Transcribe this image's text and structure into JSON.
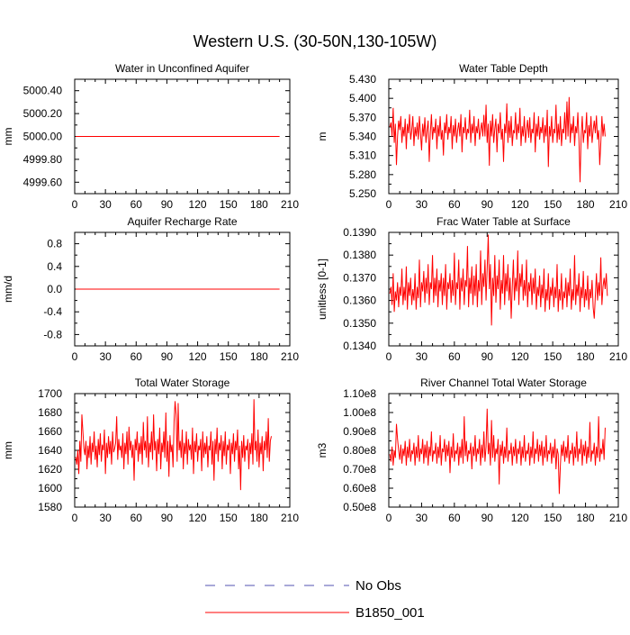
{
  "figure": {
    "title": "Western U.S. (30-50N,130-105W)"
  },
  "legend": {
    "entries": [
      {
        "label": "No Obs",
        "color": "#5050b0",
        "dash": true
      },
      {
        "label": "B1850_001",
        "color": "#ff0000",
        "dash": false
      }
    ]
  },
  "colors": {
    "series": "#ff0000",
    "axes": "#000000"
  },
  "chart_data": [
    {
      "type": "line",
      "title": "Water in Unconfined Aquifer",
      "ylabel": "mm",
      "xlim": [
        0,
        210
      ],
      "xticks": [
        0,
        30,
        60,
        90,
        120,
        150,
        180,
        210
      ],
      "ylim": [
        4999.5,
        5000.5
      ],
      "yticks": [
        "4999.60",
        "4999.80",
        "5000.00",
        "5000.20",
        "5000.40"
      ],
      "series": [
        {
          "constant": 5000.0,
          "n": 200
        }
      ]
    },
    {
      "type": "line",
      "title": "Water Table Depth",
      "ylabel": "m",
      "xlim": [
        0,
        210
      ],
      "xticks": [
        0,
        30,
        60,
        90,
        120,
        150,
        180,
        210
      ],
      "ylim": [
        5.25,
        5.43
      ],
      "yticks": [
        "5.250",
        "5.280",
        "5.310",
        "5.340",
        "5.370",
        "5.400",
        "5.430"
      ],
      "series": [
        {
          "values": [
            5.355,
            5.362,
            5.34,
            5.385,
            5.33,
            5.36,
            5.295,
            5.34,
            5.365,
            5.35,
            5.372,
            5.33,
            5.355,
            5.34,
            5.368,
            5.32,
            5.36,
            5.345,
            5.375,
            5.335,
            5.35,
            5.372,
            5.325,
            5.355,
            5.34,
            5.362,
            5.335,
            5.372,
            5.345,
            5.318,
            5.36,
            5.34,
            5.37,
            5.33,
            5.35,
            5.365,
            5.3,
            5.345,
            5.375,
            5.335,
            5.355,
            5.345,
            5.368,
            5.32,
            5.358,
            5.34,
            5.372,
            5.335,
            5.35,
            5.31,
            5.362,
            5.345,
            5.375,
            5.335,
            5.355,
            5.345,
            5.372,
            5.32,
            5.358,
            5.34,
            5.368,
            5.33,
            5.35,
            5.362,
            5.34,
            5.375,
            5.315,
            5.355,
            5.345,
            5.37,
            5.335,
            5.352,
            5.345,
            5.382,
            5.33,
            5.36,
            5.345,
            5.372,
            5.325,
            5.356,
            5.345,
            5.368,
            5.335,
            5.35,
            5.362,
            5.34,
            5.374,
            5.34,
            5.39,
            5.33,
            5.36,
            5.294,
            5.365,
            5.34,
            5.375,
            5.33,
            5.352,
            5.368,
            5.315,
            5.36,
            5.345,
            5.378,
            5.335,
            5.352,
            5.3,
            5.36,
            5.345,
            5.392,
            5.33,
            5.365,
            5.338,
            5.372,
            5.325,
            5.35,
            5.345,
            5.378,
            5.335,
            5.36,
            5.345,
            5.385,
            5.325,
            5.356,
            5.34,
            5.372,
            5.33,
            5.35,
            5.366,
            5.338,
            5.37,
            5.33,
            5.352,
            5.345,
            5.378,
            5.315,
            5.36,
            5.34,
            5.372,
            5.335,
            5.355,
            5.345,
            5.37,
            5.33,
            5.358,
            5.34,
            5.382,
            5.292,
            5.356,
            5.34,
            5.372,
            5.33,
            5.352,
            5.345,
            5.39,
            5.33,
            5.36,
            5.335,
            5.372,
            5.325,
            5.352,
            5.345,
            5.378,
            5.335,
            5.395,
            5.34,
            5.402,
            5.33,
            5.36,
            5.345,
            5.372,
            5.325,
            5.356,
            5.345,
            5.378,
            5.335,
            5.268,
            5.34,
            5.372,
            5.33,
            5.35,
            5.345,
            5.378,
            5.32,
            5.358,
            5.34,
            5.372,
            5.33,
            5.35,
            5.365,
            5.345,
            5.373,
            5.335,
            5.35,
            5.295,
            5.33,
            5.372,
            5.34,
            5.36,
            5.34
          ]
        }
      ]
    },
    {
      "type": "line",
      "title": "Aquifer Recharge Rate",
      "ylabel": "mm/d",
      "xlim": [
        0,
        210
      ],
      "xticks": [
        0,
        30,
        60,
        90,
        120,
        150,
        180,
        210
      ],
      "ylim": [
        -1.0,
        1.0
      ],
      "yticks": [
        "-0.8",
        "-0.4",
        "0.0",
        "0.4",
        "0.8"
      ],
      "series": [
        {
          "constant": 0.0,
          "n": 200
        }
      ]
    },
    {
      "type": "line",
      "title": "Frac Water Table at Surface",
      "ylabel": "unitless [0-1]",
      "xlim": [
        0,
        210
      ],
      "xticks": [
        0,
        30,
        60,
        90,
        120,
        150,
        180,
        210
      ],
      "ylim": [
        0.134,
        0.139
      ],
      "yticks": [
        "0.1340",
        "0.1350",
        "0.1360",
        "0.1370",
        "0.1380",
        "0.1390"
      ],
      "series": [
        {
          "values": [
            0.1363,
            0.1366,
            0.1358,
            0.1372,
            0.1355,
            0.1364,
            0.136,
            0.1368,
            0.1357,
            0.1366,
            0.1362,
            0.1374,
            0.1358,
            0.1366,
            0.136,
            0.1375,
            0.1356,
            0.1368,
            0.1362,
            0.137,
            0.1358,
            0.1365,
            0.136,
            0.1372,
            0.1356,
            0.1366,
            0.1361,
            0.1378,
            0.1357,
            0.1368,
            0.1364,
            0.1373,
            0.1359,
            0.137,
            0.1363,
            0.1376,
            0.1358,
            0.1368,
            0.1365,
            0.138,
            0.1359,
            0.137,
            0.1362,
            0.1374,
            0.1357,
            0.1369,
            0.1364,
            0.1372,
            0.1358,
            0.137,
            0.1362,
            0.1376,
            0.1356,
            0.1368,
            0.1365,
            0.1372,
            0.1359,
            0.1369,
            0.1362,
            0.1381,
            0.1358,
            0.1368,
            0.1365,
            0.1378,
            0.1356,
            0.137,
            0.1364,
            0.1374,
            0.1358,
            0.1369,
            0.1366,
            0.1384,
            0.1357,
            0.137,
            0.1363,
            0.1375,
            0.1358,
            0.1371,
            0.1362,
            0.1376,
            0.1357,
            0.1369,
            0.1364,
            0.1382,
            0.1358,
            0.1372,
            0.1366,
            0.1378,
            0.136,
            0.1374,
            0.1389,
            0.1365,
            0.1376,
            0.1349,
            0.137,
            0.1362,
            0.138,
            0.1359,
            0.1371,
            0.1365,
            0.1378,
            0.1356,
            0.1369,
            0.1363,
            0.138,
            0.1358,
            0.1372,
            0.1364,
            0.1376,
            0.136,
            0.137,
            0.1352,
            0.1366,
            0.1378,
            0.136,
            0.137,
            0.1364,
            0.1382,
            0.1358,
            0.1372,
            0.1366,
            0.1376,
            0.136,
            0.1369,
            0.1362,
            0.1378,
            0.1357,
            0.1368,
            0.1364,
            0.1372,
            0.1358,
            0.137,
            0.1363,
            0.1374,
            0.1356,
            0.1366,
            0.1362,
            0.1371,
            0.1357,
            0.1367,
            0.1361,
            0.1374,
            0.1355,
            0.1365,
            0.136,
            0.1372,
            0.1356,
            0.1366,
            0.1362,
            0.137,
            0.1357,
            0.1366,
            0.1361,
            0.1376,
            0.1355,
            0.1365,
            0.136,
            0.1372,
            0.1356,
            0.1364,
            0.1361,
            0.137,
            0.1357,
            0.1368,
            0.1362,
            0.1374,
            0.1356,
            0.1365,
            0.136,
            0.138,
            0.1358,
            0.1367,
            0.1362,
            0.1372,
            0.1355,
            0.1366,
            0.1361,
            0.1373,
            0.1357,
            0.1365,
            0.136,
            0.1371,
            0.1356,
            0.1365,
            0.1361,
            0.1369,
            0.1357,
            0.1352,
            0.1362,
            0.1372,
            0.136,
            0.1368,
            0.1362,
            0.1379,
            0.1358,
            0.1366,
            0.137,
            0.1365,
            0.1372,
            0.1362
          ]
        }
      ]
    },
    {
      "type": "line",
      "title": "Total Water Storage",
      "ylabel": "mm",
      "xlim": [
        0,
        210
      ],
      "xticks": [
        0,
        30,
        60,
        90,
        120,
        150,
        180,
        210
      ],
      "ylim": [
        1580,
        1700
      ],
      "yticks": [
        "1580",
        "1600",
        "1620",
        "1640",
        "1660",
        "1680",
        "1700"
      ],
      "series": [
        {
          "values": [
            1633,
            1625,
            1640,
            1615,
            1650,
            1628,
            1678,
            1660,
            1642,
            1635,
            1650,
            1620,
            1645,
            1632,
            1655,
            1625,
            1648,
            1638,
            1660,
            1630,
            1645,
            1622,
            1652,
            1635,
            1658,
            1628,
            1646,
            1640,
            1662,
            1615,
            1648,
            1632,
            1655,
            1636,
            1650,
            1625,
            1660,
            1638,
            1642,
            1648,
            1676,
            1630,
            1652,
            1640,
            1645,
            1632,
            1658,
            1620,
            1648,
            1636,
            1660,
            1625,
            1665,
            1640,
            1650,
            1632,
            1646,
            1608,
            1652,
            1640,
            1660,
            1628,
            1648,
            1636,
            1655,
            1625,
            1670,
            1640,
            1650,
            1632,
            1676,
            1622,
            1648,
            1638,
            1660,
            1630,
            1678,
            1640,
            1650,
            1618,
            1652,
            1636,
            1664,
            1620,
            1648,
            1638,
            1660,
            1632,
            1680,
            1628,
            1650,
            1612,
            1656,
            1638,
            1646,
            1622,
            1670,
            1692,
            1678,
            1628,
            1690,
            1640,
            1650,
            1632,
            1662,
            1620,
            1648,
            1636,
            1660,
            1625,
            1652,
            1640,
            1646,
            1630,
            1664,
            1615,
            1650,
            1638,
            1658,
            1628,
            1645,
            1640,
            1652,
            1618,
            1660,
            1632,
            1648,
            1636,
            1655,
            1622,
            1645,
            1640,
            1660,
            1625,
            1650,
            1608,
            1652,
            1636,
            1664,
            1628,
            1648,
            1640,
            1656,
            1620,
            1650,
            1634,
            1660,
            1625,
            1646,
            1640,
            1652,
            1615,
            1648,
            1636,
            1658,
            1628,
            1650,
            1640,
            1662,
            1620,
            1645,
            1598,
            1650,
            1632,
            1656,
            1628,
            1645,
            1640,
            1652,
            1620,
            1648,
            1636,
            1658,
            1625,
            1694,
            1640,
            1650,
            1628,
            1662,
            1622,
            1648,
            1636,
            1655,
            1618,
            1650,
            1640,
            1660,
            1632,
            1674,
            1628,
            1650,
            1655
          ]
        }
      ]
    },
    {
      "type": "line",
      "title": "River Channel Total Water Storage",
      "ylabel": "m3",
      "xlim": [
        0,
        210
      ],
      "xticks": [
        0,
        30,
        60,
        90,
        120,
        150,
        180,
        210
      ],
      "ylim": [
        50000000.0,
        110000000.0
      ],
      "yticks": [
        "0.50e8",
        "0.60e8",
        "0.70e8",
        "0.80e8",
        "0.90e8",
        "1.00e8",
        "1.10e8"
      ],
      "series": [
        {
          "values": [
            0.78,
            0.74,
            0.82,
            0.72,
            0.8,
            0.76,
            0.94,
            0.86,
            0.8,
            0.75,
            0.83,
            0.73,
            0.81,
            0.77,
            0.85,
            0.72,
            0.82,
            0.76,
            0.86,
            0.74,
            0.8,
            0.78,
            0.84,
            0.72,
            0.82,
            0.76,
            0.88,
            0.74,
            0.81,
            0.78,
            0.86,
            0.73,
            0.83,
            0.76,
            0.85,
            0.72,
            0.82,
            0.77,
            0.9,
            0.74,
            0.8,
            0.78,
            0.84,
            0.73,
            0.82,
            0.76,
            0.88,
            0.72,
            0.81,
            0.79,
            0.86,
            0.74,
            0.83,
            0.77,
            0.85,
            0.68,
            0.82,
            0.76,
            0.89,
            0.74,
            0.8,
            0.78,
            0.84,
            0.72,
            0.82,
            0.76,
            0.86,
            0.73,
            0.98,
            0.77,
            0.85,
            0.74,
            0.8,
            0.78,
            0.84,
            0.7,
            0.82,
            0.77,
            0.88,
            0.74,
            0.81,
            0.78,
            0.86,
            0.72,
            0.83,
            0.76,
            0.9,
            0.74,
            0.82,
            1.02,
            0.78,
            0.84,
            0.72,
            0.96,
            0.76,
            0.88,
            0.74,
            0.81,
            0.78,
            0.86,
            0.62,
            0.83,
            0.77,
            0.85,
            0.73,
            0.82,
            0.76,
            0.92,
            0.74,
            0.8,
            0.78,
            0.84,
            0.72,
            0.82,
            0.77,
            0.86,
            0.73,
            0.81,
            0.78,
            0.85,
            0.72,
            0.82,
            0.76,
            0.88,
            0.74,
            0.8,
            0.78,
            0.84,
            0.72,
            0.82,
            0.76,
            0.9,
            0.73,
            0.81,
            0.78,
            0.86,
            0.74,
            0.83,
            0.77,
            0.85,
            0.72,
            0.82,
            0.76,
            0.88,
            0.74,
            0.8,
            0.78,
            0.84,
            0.73,
            0.82,
            0.76,
            0.86,
            0.7,
            0.81,
            0.78,
            0.57,
            0.72,
            0.83,
            0.77,
            0.85,
            0.74,
            0.82,
            0.76,
            0.88,
            0.73,
            0.8,
            0.78,
            0.84,
            0.72,
            0.82,
            0.76,
            0.9,
            0.74,
            0.81,
            0.78,
            0.86,
            0.72,
            0.83,
            0.77,
            0.85,
            0.73,
            0.82,
            0.76,
            0.95,
            0.74,
            0.8,
            0.78,
            0.84,
            0.72,
            0.82,
            0.76,
            0.98,
            0.74,
            0.81,
            0.78,
            0.86,
            0.75,
            0.92
          ]
        }
      ]
    }
  ]
}
